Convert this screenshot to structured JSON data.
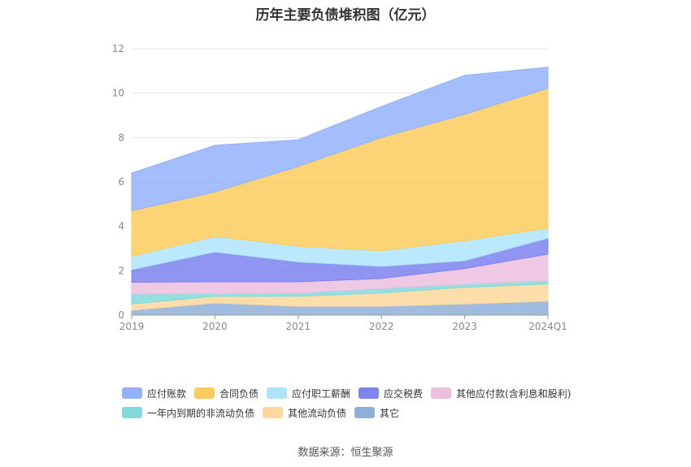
{
  "title": "历年主要负债堆积图（亿元）",
  "source": "数据来源：恒生聚源",
  "chart_data": {
    "type": "area",
    "stacked": true,
    "categories": [
      "2019",
      "2020",
      "2021",
      "2022",
      "2023",
      "2024Q1"
    ],
    "ylim": [
      0,
      12
    ],
    "yticks": [
      "0",
      "2",
      "4",
      "6",
      "8",
      "10",
      "12"
    ],
    "grid": true,
    "legend_position": "bottom",
    "series": [
      {
        "name": "其它",
        "color": "#8eafda",
        "values": [
          0.22,
          0.55,
          0.4,
          0.4,
          0.5,
          0.63
        ]
      },
      {
        "name": "其他流动负债",
        "color": "#fdd89c",
        "values": [
          0.28,
          0.3,
          0.45,
          0.6,
          0.75,
          0.77
        ]
      },
      {
        "name": "一年内到期的非流动负债",
        "color": "#81d9d9",
        "values": [
          0.45,
          0.12,
          0.15,
          0.2,
          0.15,
          0.15
        ]
      },
      {
        "name": "其他应付款(含利息和股利)",
        "color": "#ecbfdf",
        "values": [
          0.53,
          0.53,
          0.5,
          0.45,
          0.7,
          1.2
        ]
      },
      {
        "name": "应交税费",
        "color": "#7d83ef",
        "values": [
          0.57,
          1.35,
          0.9,
          0.55,
          0.35,
          0.72
        ]
      },
      {
        "name": "应付职工薪酬",
        "color": "#aee4fb",
        "values": [
          0.6,
          0.7,
          0.7,
          0.7,
          0.9,
          0.45
        ]
      },
      {
        "name": "合同负债",
        "color": "#fbcc5d",
        "values": [
          2.05,
          2.0,
          3.6,
          5.1,
          5.7,
          6.3
        ]
      },
      {
        "name": "应付账款",
        "color": "#94b1fb",
        "values": [
          1.7,
          2.1,
          1.2,
          1.4,
          1.75,
          0.95
        ]
      }
    ]
  },
  "legend_rows": [
    [
      {
        "label": "应付账款",
        "color": "#94b1fb"
      },
      {
        "label": "合同负债",
        "color": "#fbcc5d"
      },
      {
        "label": "应付职工薪酬",
        "color": "#aee4fb"
      },
      {
        "label": "应交税费",
        "color": "#7d83ef"
      },
      {
        "label": "其他应付款(含利息和股利)",
        "color": "#ecbfdf"
      }
    ],
    [
      {
        "label": "一年内到期的非流动负债",
        "color": "#81d9d9"
      },
      {
        "label": "其他流动负债",
        "color": "#fdd89c"
      },
      {
        "label": "其它",
        "color": "#8eafda"
      }
    ]
  ]
}
